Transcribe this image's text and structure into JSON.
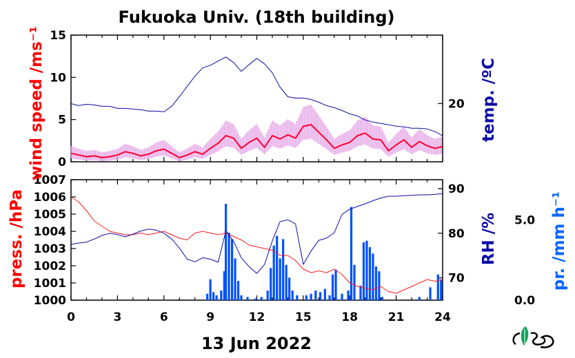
{
  "title": "Fukuoka Univ. (18th building)",
  "xlabel": "13 Jun 2022",
  "x_ticks": [
    "0",
    "3",
    "6",
    "9",
    "12",
    "15",
    "18",
    "21",
    "24"
  ],
  "colors": {
    "wind_raw": "#dd88dd",
    "wind_avg": "#ff0033",
    "temp": "#0a0aa6",
    "pressure": "#ff1a1a",
    "rh": "#0a0aa6",
    "precip": "#0050ff",
    "axis": "#000000"
  },
  "logo_icon": "leaf-logo-icon",
  "chart_data": [
    {
      "type": "line",
      "panel": "top",
      "x_range": [
        0,
        24
      ],
      "left_axis": {
        "label": "wind speed /ms⁻¹",
        "range": [
          0,
          15
        ],
        "ticks": [
          "0",
          "5",
          "10",
          "15"
        ]
      },
      "right_axis": {
        "label": "temp. /ºC",
        "range": [
          11.5,
          30
        ],
        "ticks": [
          "20"
        ]
      },
      "series": [
        {
          "key": "wind_avg",
          "axis": "left",
          "x": [
            0,
            0.5,
            1,
            1.5,
            2,
            2.5,
            3,
            3.5,
            4,
            4.5,
            5,
            5.5,
            6,
            6.5,
            7,
            7.5,
            8,
            8.5,
            9,
            9.5,
            10,
            10.5,
            11,
            11.5,
            12,
            12.5,
            13,
            13.5,
            14,
            14.5,
            15,
            15.5,
            16,
            16.5,
            17,
            17.5,
            18,
            18.5,
            19,
            19.5,
            20,
            20.5,
            21,
            21.5,
            22,
            22.5,
            23,
            23.5,
            24
          ],
          "y": [
            1.0,
            0.8,
            0.6,
            0.7,
            0.5,
            0.6,
            0.8,
            1.2,
            1.0,
            0.7,
            0.9,
            1.3,
            1.5,
            1.0,
            0.5,
            0.8,
            1.2,
            0.9,
            1.6,
            2.2,
            3.1,
            2.8,
            1.6,
            2.3,
            2.8,
            1.7,
            3.1,
            2.7,
            3.2,
            2.8,
            4.2,
            4.4,
            3.5,
            2.6,
            1.6,
            2.0,
            2.3,
            3.1,
            3.4,
            2.7,
            2.6,
            1.3,
            2.0,
            2.6,
            1.7,
            2.4,
            1.9,
            1.6,
            1.8
          ]
        },
        {
          "key": "temp",
          "axis": "right",
          "x": [
            0,
            0.5,
            1,
            1.5,
            2,
            2.5,
            3,
            3.5,
            4,
            4.5,
            5,
            5.5,
            6,
            6.5,
            7,
            7.5,
            8,
            8.5,
            9,
            9.5,
            10,
            10.5,
            11,
            11.5,
            12,
            12.5,
            13,
            13.5,
            14,
            14.5,
            15,
            15.5,
            16,
            16.5,
            17,
            17.5,
            18,
            18.5,
            19,
            19.5,
            20,
            20.5,
            21,
            21.5,
            22,
            22.5,
            23,
            23.5,
            24
          ],
          "y": [
            20.0,
            19.7,
            19.9,
            19.8,
            19.6,
            19.6,
            19.3,
            19.3,
            19.2,
            19.1,
            18.9,
            18.9,
            18.8,
            19.6,
            21.0,
            22.5,
            24.0,
            25.2,
            25.6,
            26.2,
            26.8,
            26.0,
            24.7,
            25.7,
            26.6,
            25.8,
            24.5,
            22.4,
            21.0,
            20.8,
            20.8,
            20.6,
            20.2,
            19.7,
            19.4,
            19.0,
            18.5,
            18.2,
            17.6,
            17.3,
            17.1,
            16.9,
            16.7,
            16.6,
            16.4,
            16.4,
            16.3,
            15.9,
            15.3
          ]
        }
      ]
    },
    {
      "type": "line",
      "panel": "bottom",
      "x_range": [
        0,
        24
      ],
      "left_axis": {
        "label": "press. /hPa",
        "range": [
          1000,
          1007
        ],
        "ticks": [
          "1000",
          "1001",
          "1002",
          "1003",
          "1004",
          "1005",
          "1006",
          "1007"
        ]
      },
      "right_axis": {
        "label": "RH /%",
        "range": [
          65,
          92
        ],
        "ticks": [
          "70",
          "80",
          "90"
        ]
      },
      "precip_axis": {
        "label": "pr. /mm h⁻¹",
        "range": [
          0,
          7.5
        ],
        "ticks": [
          "0.0",
          "5.0"
        ]
      },
      "series": [
        {
          "key": "pressure",
          "axis": "left",
          "x": [
            0,
            0.5,
            1,
            1.5,
            2,
            2.5,
            3,
            3.5,
            4,
            4.5,
            5,
            5.5,
            6,
            6.5,
            7,
            7.5,
            8,
            8.5,
            9,
            9.5,
            10,
            10.5,
            11,
            11.5,
            12,
            12.5,
            13,
            13.5,
            14,
            14.5,
            15,
            15.5,
            16,
            16.5,
            17,
            17.5,
            18,
            18.5,
            19,
            19.5,
            20,
            20.5,
            21,
            21.5,
            22,
            22.5,
            23,
            23.5,
            24
          ],
          "y": [
            1006.0,
            1005.7,
            1005.2,
            1004.6,
            1004.3,
            1004.0,
            1003.9,
            1003.8,
            1003.8,
            1003.9,
            1003.8,
            1003.9,
            1004.0,
            1003.8,
            1003.6,
            1003.5,
            1003.9,
            1004.0,
            1003.9,
            1003.8,
            1003.9,
            1003.7,
            1003.5,
            1003.2,
            1003.1,
            1003.0,
            1002.9,
            1002.6,
            1002.6,
            1002.3,
            1001.8,
            1001.6,
            1001.7,
            1001.6,
            1001.8,
            1001.5,
            1001.0,
            1000.8,
            1000.7,
            1000.6,
            1000.8,
            1000.5,
            1000.4,
            1000.6,
            1000.8,
            1001.0,
            1001.2,
            1001.1,
            1001.2
          ]
        },
        {
          "key": "rh",
          "axis": "right",
          "x": [
            0,
            0.5,
            1,
            1.5,
            2,
            2.5,
            3,
            3.5,
            4,
            4.5,
            5,
            5.5,
            6,
            6.5,
            7,
            7.5,
            8,
            8.5,
            9,
            9.5,
            10,
            10.5,
            11,
            11.5,
            12,
            12.5,
            13,
            13.5,
            14,
            14.5,
            15,
            15.5,
            16,
            16.5,
            17,
            17.5,
            18,
            18.5,
            19,
            19.5,
            20,
            20.5,
            21,
            21.5,
            22,
            22.5,
            23,
            23.5,
            24
          ],
          "y": [
            77.5,
            77.8,
            78.0,
            78.7,
            79.5,
            80.0,
            79.7,
            79.2,
            79.8,
            80.5,
            80.9,
            80.7,
            80.0,
            78.7,
            76.7,
            74.2,
            73.6,
            74.5,
            74.2,
            73.5,
            80.5,
            78.2,
            74.5,
            72.5,
            71.0,
            73.0,
            78.3,
            82.6,
            83.0,
            82.1,
            73.0,
            76.0,
            78.4,
            78.9,
            80.1,
            84.2,
            85.4,
            86.0,
            86.6,
            87.3,
            87.9,
            88.3,
            88.3,
            88.4,
            88.5,
            88.6,
            88.6,
            88.7,
            88.9
          ]
        },
        {
          "key": "precip",
          "type": "bar",
          "axis": "precip",
          "x": [
            8.8,
            9.0,
            9.2,
            9.4,
            9.7,
            9.9,
            10.0,
            10.2,
            10.4,
            10.6,
            10.8,
            11.0,
            11.4,
            11.9,
            12.3,
            12.7,
            12.9,
            13.1,
            13.3,
            13.5,
            13.7,
            13.9,
            14.1,
            14.3,
            14.6,
            15.2,
            15.5,
            15.8,
            16.1,
            16.4,
            16.7,
            16.9,
            17.1,
            17.5,
            17.9,
            18.1,
            18.3,
            18.7,
            18.9,
            19.1,
            19.3,
            19.5,
            19.7,
            19.9,
            20.1,
            22.5,
            23.2,
            23.7,
            23.9
          ],
          "y": [
            0.4,
            1.3,
            0.5,
            0.3,
            0.6,
            1.8,
            6.0,
            4.2,
            3.8,
            2.6,
            1.2,
            0.3,
            0.2,
            0.1,
            0.2,
            0.6,
            2.0,
            3.4,
            4.0,
            2.6,
            3.8,
            2.2,
            1.4,
            0.6,
            0.3,
            0.3,
            0.4,
            0.6,
            0.5,
            0.7,
            0.3,
            1.6,
            1.9,
            0.4,
            0.6,
            5.8,
            2.2,
            0.9,
            3.6,
            3.7,
            3.3,
            2.9,
            2.1,
            1.8,
            0.2,
            0.2,
            0.8,
            1.6,
            1.3
          ]
        }
      ]
    }
  ]
}
